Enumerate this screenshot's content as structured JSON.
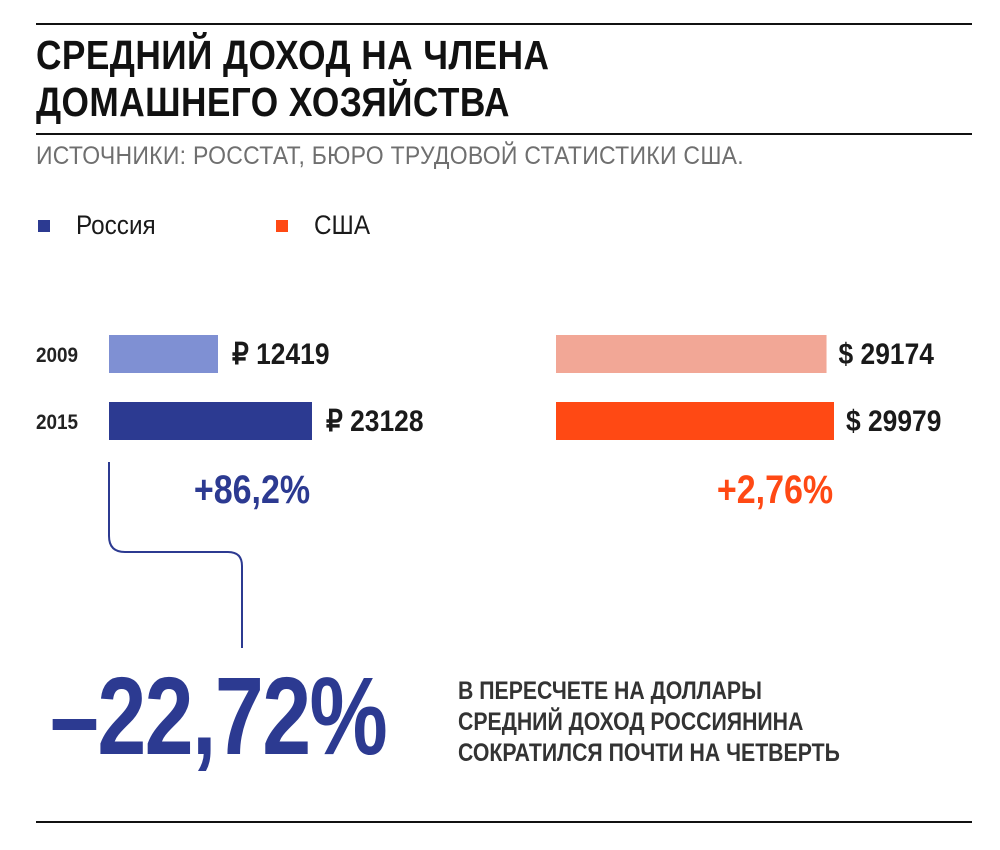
{
  "header": {
    "title_line1": "СРЕДНИЙ ДОХОД НА ЧЛЕНА",
    "title_line2": "ДОМАШНЕГО ХОЗЯЙСТВА",
    "sources": "ИСТОЧНИКИ: РОССТАТ, БЮРО ТРУДОВОЙ СТАТИСТИКИ США."
  },
  "legend": [
    {
      "label": "Россия",
      "color": "#2c3a91"
    },
    {
      "label": "США",
      "color": "#ff4914"
    }
  ],
  "chart_data": {
    "type": "bar",
    "orientation": "horizontal",
    "categories": [
      "2009",
      "2015"
    ],
    "series": [
      {
        "name": "Россия",
        "values": [
          12419,
          23128
        ],
        "labels": [
          "₽ 12419",
          "₽  23128"
        ],
        "colors": [
          "#7f90d3",
          "#2c3a91"
        ],
        "change": "+86,2%",
        "change_color": "#2c3a91"
      },
      {
        "name": "США",
        "values": [
          29174,
          29979
        ],
        "labels": [
          "$ 29174",
          "$ 29979"
        ],
        "colors": [
          "#f2a796",
          "#ff4914"
        ],
        "change": "+2,76%",
        "change_color": "#ff4914"
      }
    ]
  },
  "annotation": {
    "value": "–22,72%",
    "color": "#2c3a91",
    "text_line1": "В ПЕРЕСЧЕТЕ НА ДОЛЛАРЫ",
    "text_line2": "СРЕДНИЙ ДОХОД РОССИЯНИНА",
    "text_line3": "СОКРАТИЛСЯ ПОЧТИ НА ЧЕТВЕРТЬ"
  }
}
